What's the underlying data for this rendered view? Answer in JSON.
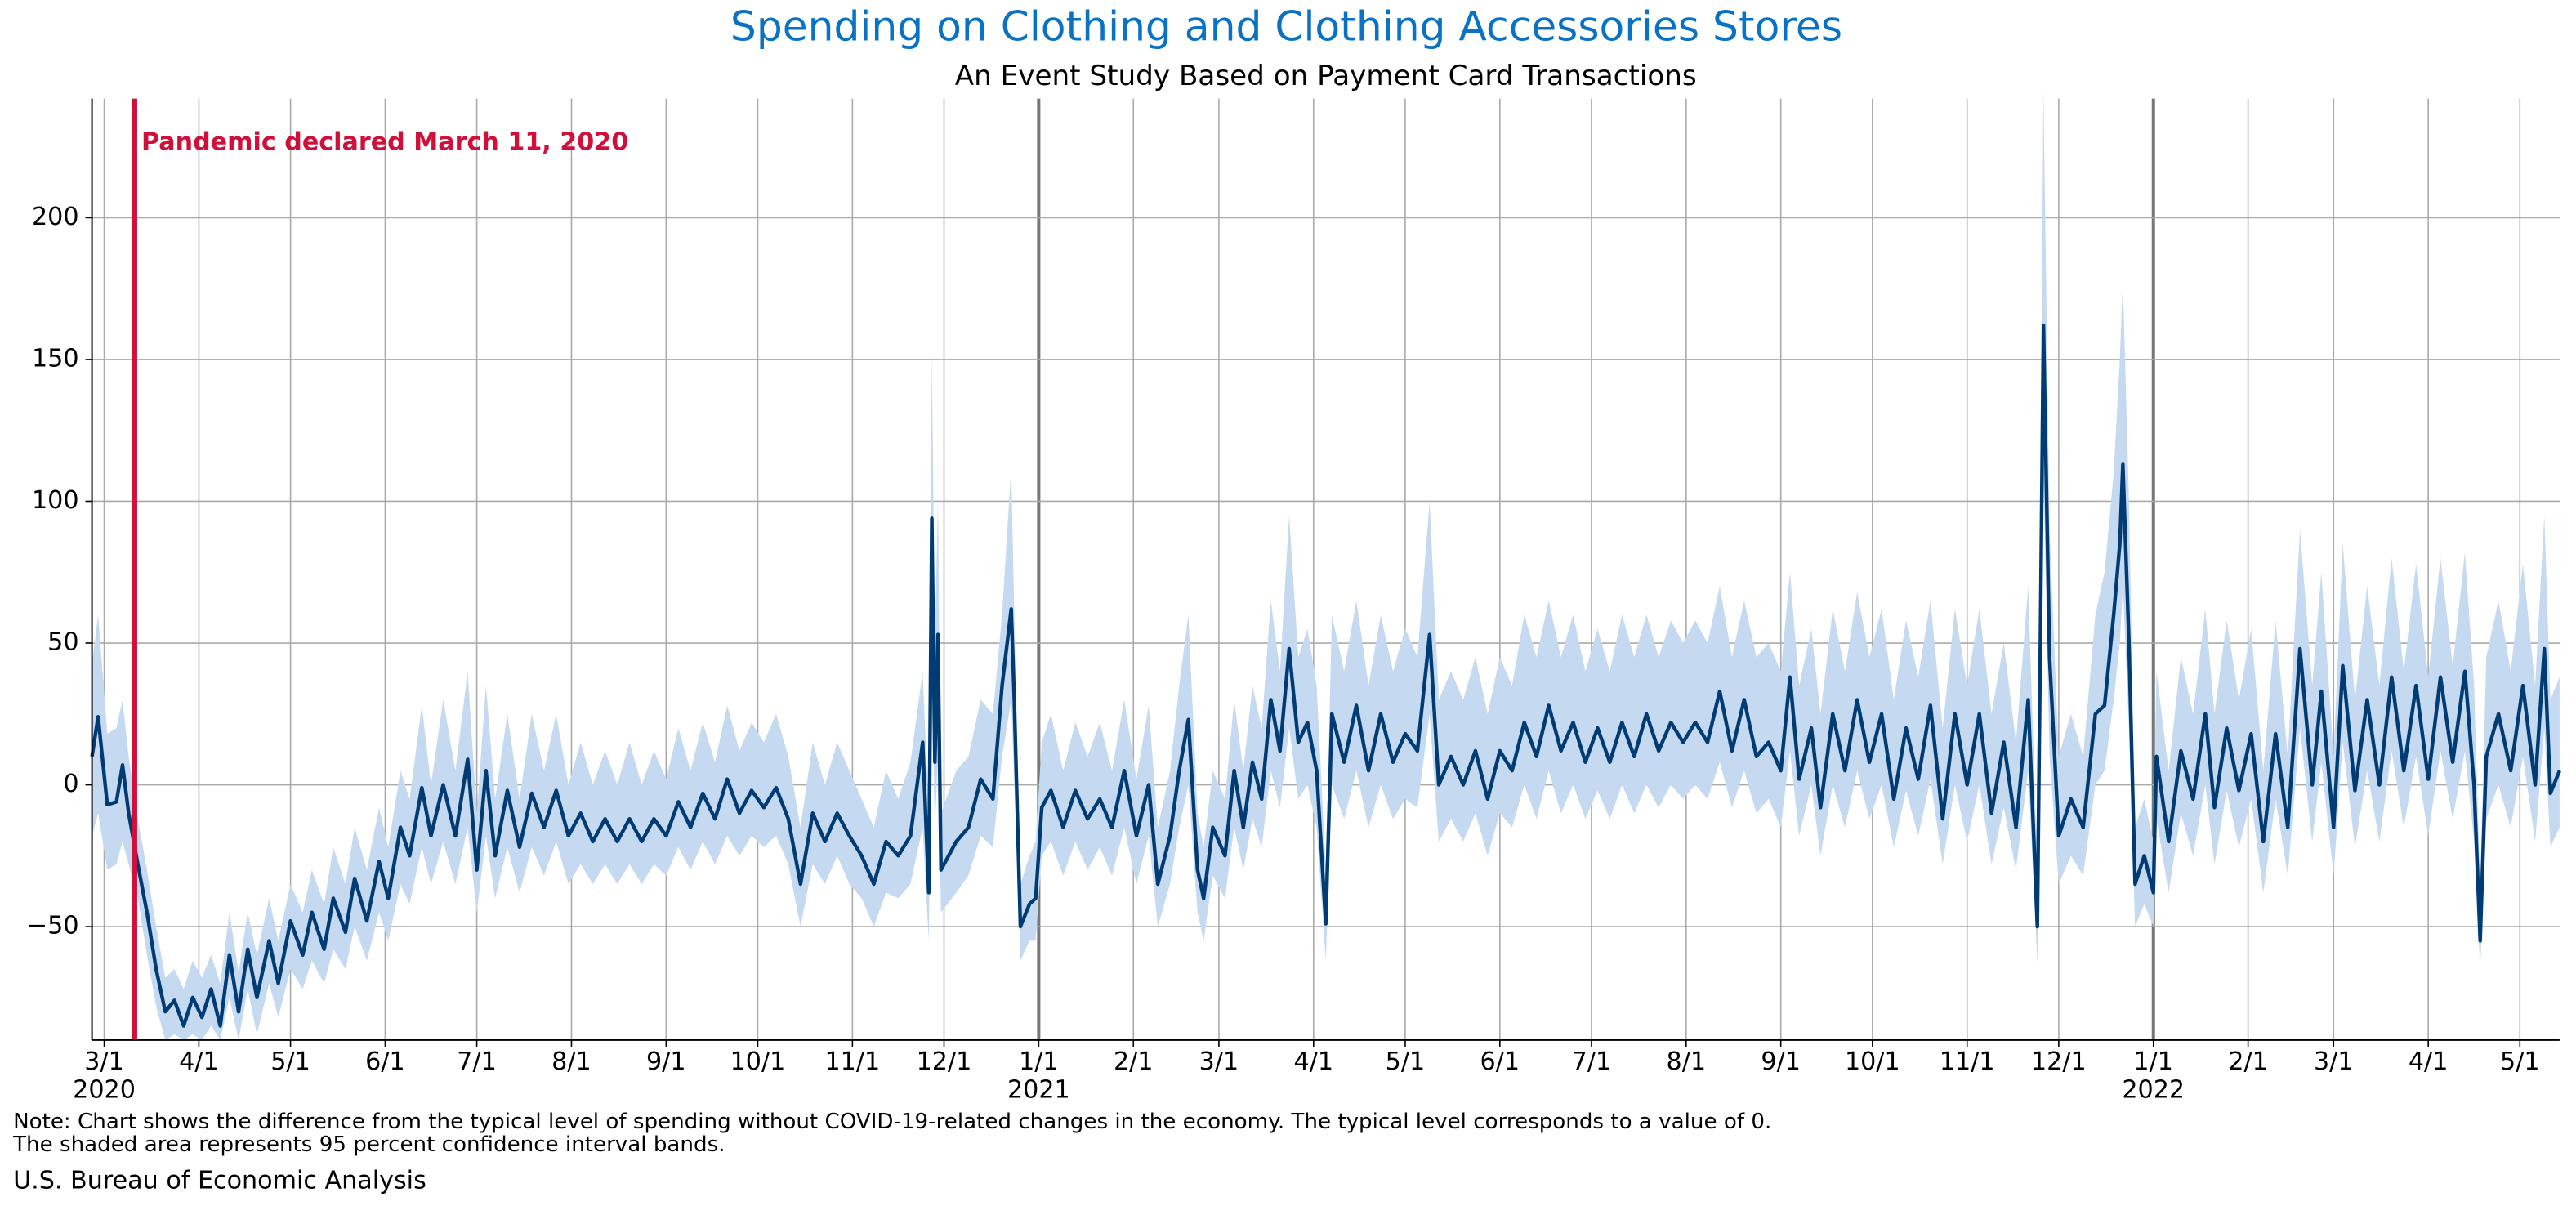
{
  "chart_data": {
    "type": "line",
    "title": "Spending on Clothing and Clothing Accessories Stores",
    "subtitle": "An Event Study Based on Payment Card Transactions",
    "annotation": "Pandemic declared March 11, 2020",
    "event_date": "2020-03-11",
    "note": [
      "Note: Chart shows the difference from the typical level of spending without COVID-19-related changes in the economy. The typical level corresponds to a value of 0.",
      "The shaded area represents 95 percent confidence interval bands."
    ],
    "source": "U.S. Bureau of Economic Analysis",
    "line_color": "#003b73",
    "band_color": "#c5d9f0",
    "event_color": "#d0103a",
    "grid": true,
    "xlim": [
      "2020-02-26",
      "2022-05-14"
    ],
    "ylim": [
      -90,
      242
    ],
    "yticks": [
      {
        "value": -50,
        "label": "−50"
      },
      0,
      50,
      100,
      150,
      200
    ],
    "xticks": [
      {
        "value": "2020-03-01",
        "label": "3/1\n2020"
      },
      {
        "value": "2020-04-01",
        "label": "4/1"
      },
      {
        "value": "2020-05-01",
        "label": "5/1"
      },
      {
        "value": "2020-06-01",
        "label": "6/1"
      },
      {
        "value": "2020-07-01",
        "label": "7/1"
      },
      {
        "value": "2020-08-01",
        "label": "8/1"
      },
      {
        "value": "2020-09-01",
        "label": "9/1"
      },
      {
        "value": "2020-10-01",
        "label": "10/1"
      },
      {
        "value": "2020-11-01",
        "label": "11/1"
      },
      {
        "value": "2020-12-01",
        "label": "12/1"
      },
      {
        "value": "2021-01-01",
        "label": "1/1\n2021"
      },
      {
        "value": "2021-02-01",
        "label": "2/1"
      },
      {
        "value": "2021-03-01",
        "label": "3/1"
      },
      {
        "value": "2021-04-01",
        "label": "4/1"
      },
      {
        "value": "2021-05-01",
        "label": "5/1"
      },
      {
        "value": "2021-06-01",
        "label": "6/1"
      },
      {
        "value": "2021-07-01",
        "label": "7/1"
      },
      {
        "value": "2021-08-01",
        "label": "8/1"
      },
      {
        "value": "2021-09-01",
        "label": "9/1"
      },
      {
        "value": "2021-10-01",
        "label": "10/1"
      },
      {
        "value": "2021-11-01",
        "label": "11/1"
      },
      {
        "value": "2021-12-01",
        "label": "12/1"
      },
      {
        "value": "2022-01-01",
        "label": "1/1\n2022"
      },
      {
        "value": "2022-02-01",
        "label": "2/1"
      },
      {
        "value": "2022-03-01",
        "label": "3/1"
      },
      {
        "value": "2022-04-01",
        "label": "4/1"
      },
      {
        "value": "2022-05-01",
        "label": "5/1"
      }
    ],
    "x": [
      "2020-02-26",
      "2020-02-28",
      "2020-03-02",
      "2020-03-05",
      "2020-03-07",
      "2020-03-09",
      "2020-03-12",
      "2020-03-15",
      "2020-03-18",
      "2020-03-21",
      "2020-03-24",
      "2020-03-27",
      "2020-03-30",
      "2020-04-02",
      "2020-04-05",
      "2020-04-08",
      "2020-04-11",
      "2020-04-14",
      "2020-04-17",
      "2020-04-20",
      "2020-04-24",
      "2020-04-27",
      "2020-05-01",
      "2020-05-05",
      "2020-05-08",
      "2020-05-12",
      "2020-05-15",
      "2020-05-19",
      "2020-05-22",
      "2020-05-26",
      "2020-05-30",
      "2020-06-02",
      "2020-06-06",
      "2020-06-09",
      "2020-06-13",
      "2020-06-16",
      "2020-06-20",
      "2020-06-24",
      "2020-06-28",
      "2020-07-01",
      "2020-07-04",
      "2020-07-07",
      "2020-07-11",
      "2020-07-15",
      "2020-07-19",
      "2020-07-23",
      "2020-07-27",
      "2020-07-31",
      "2020-08-04",
      "2020-08-08",
      "2020-08-12",
      "2020-08-16",
      "2020-08-20",
      "2020-08-24",
      "2020-08-28",
      "2020-09-01",
      "2020-09-05",
      "2020-09-09",
      "2020-09-13",
      "2020-09-17",
      "2020-09-21",
      "2020-09-25",
      "2020-09-29",
      "2020-10-03",
      "2020-10-07",
      "2020-10-11",
      "2020-10-15",
      "2020-10-19",
      "2020-10-23",
      "2020-10-27",
      "2020-10-31",
      "2020-11-04",
      "2020-11-08",
      "2020-11-12",
      "2020-11-16",
      "2020-11-20",
      "2020-11-24",
      "2020-11-26",
      "2020-11-27",
      "2020-11-28",
      "2020-11-29",
      "2020-11-30",
      "2020-12-05",
      "2020-12-09",
      "2020-12-13",
      "2020-12-17",
      "2020-12-20",
      "2020-12-23",
      "2020-12-24",
      "2020-12-26",
      "2020-12-29",
      "2020-12-31",
      "2021-01-02",
      "2021-01-05",
      "2021-01-09",
      "2021-01-13",
      "2021-01-17",
      "2021-01-21",
      "2021-01-25",
      "2021-01-29",
      "2021-02-02",
      "2021-02-06",
      "2021-02-09",
      "2021-02-13",
      "2021-02-16",
      "2021-02-19",
      "2021-02-22",
      "2021-02-24",
      "2021-02-27",
      "2021-03-03",
      "2021-03-06",
      "2021-03-09",
      "2021-03-12",
      "2021-03-15",
      "2021-03-18",
      "2021-03-21",
      "2021-03-24",
      "2021-03-27",
      "2021-03-30",
      "2021-04-02",
      "2021-04-05",
      "2021-04-07",
      "2021-04-11",
      "2021-04-15",
      "2021-04-19",
      "2021-04-23",
      "2021-04-27",
      "2021-05-01",
      "2021-05-05",
      "2021-05-09",
      "2021-05-12",
      "2021-05-16",
      "2021-05-20",
      "2021-05-24",
      "2021-05-28",
      "2021-06-01",
      "2021-06-05",
      "2021-06-09",
      "2021-06-13",
      "2021-06-17",
      "2021-06-21",
      "2021-06-25",
      "2021-06-29",
      "2021-07-03",
      "2021-07-07",
      "2021-07-11",
      "2021-07-15",
      "2021-07-19",
      "2021-07-23",
      "2021-07-27",
      "2021-07-31",
      "2021-08-04",
      "2021-08-08",
      "2021-08-12",
      "2021-08-16",
      "2021-08-20",
      "2021-08-24",
      "2021-08-28",
      "2021-09-01",
      "2021-09-04",
      "2021-09-07",
      "2021-09-11",
      "2021-09-14",
      "2021-09-18",
      "2021-09-22",
      "2021-09-26",
      "2021-09-30",
      "2021-10-04",
      "2021-10-08",
      "2021-10-12",
      "2021-10-16",
      "2021-10-20",
      "2021-10-24",
      "2021-10-28",
      "2021-11-01",
      "2021-11-05",
      "2021-11-09",
      "2021-11-13",
      "2021-11-17",
      "2021-11-21",
      "2021-11-24",
      "2021-11-25",
      "2021-11-26",
      "2021-11-28",
      "2021-12-01",
      "2021-12-05",
      "2021-12-09",
      "2021-12-13",
      "2021-12-16",
      "2021-12-19",
      "2021-12-21",
      "2021-12-22",
      "2021-12-24",
      "2021-12-26",
      "2021-12-29",
      "2022-01-01",
      "2022-01-02",
      "2022-01-06",
      "2022-01-10",
      "2022-01-14",
      "2022-01-18",
      "2022-01-21",
      "2022-01-25",
      "2022-01-29",
      "2022-02-02",
      "2022-02-06",
      "2022-02-10",
      "2022-02-14",
      "2022-02-18",
      "2022-02-22",
      "2022-02-25",
      "2022-03-01",
      "2022-03-04",
      "2022-03-08",
      "2022-03-12",
      "2022-03-16",
      "2022-03-20",
      "2022-03-24",
      "2022-03-28",
      "2022-04-01",
      "2022-04-05",
      "2022-04-09",
      "2022-04-13",
      "2022-04-16",
      "2022-04-18",
      "2022-04-20",
      "2022-04-24",
      "2022-04-28",
      "2022-05-02",
      "2022-05-06",
      "2022-05-09",
      "2022-05-11",
      "2022-05-14"
    ],
    "values": [
      10,
      24,
      -7,
      -6,
      7,
      -10,
      -28,
      -45,
      -65,
      -80,
      -76,
      -85,
      -75,
      -82,
      -72,
      -85,
      -60,
      -80,
      -58,
      -75,
      -55,
      -70,
      -48,
      -60,
      -45,
      -58,
      -40,
      -52,
      -33,
      -48,
      -27,
      -40,
      -15,
      -25,
      -1,
      -18,
      0,
      -18,
      9,
      -30,
      5,
      -25,
      -2,
      -22,
      -3,
      -15,
      -2,
      -18,
      -10,
      -20,
      -12,
      -20,
      -12,
      -20,
      -12,
      -18,
      -6,
      -15,
      -3,
      -12,
      2,
      -10,
      -2,
      -8,
      -1,
      -12,
      -35,
      -10,
      -20,
      -10,
      -18,
      -25,
      -35,
      -20,
      -25,
      -18,
      15,
      -38,
      94,
      8,
      53,
      -30,
      -20,
      -15,
      2,
      -5,
      35,
      62,
      30,
      -50,
      -42,
      -40,
      -8,
      -2,
      -15,
      -2,
      -12,
      -5,
      -15,
      5,
      -18,
      0,
      -35,
      -18,
      5,
      23,
      -30,
      -40,
      -15,
      -25,
      5,
      -15,
      8,
      -5,
      30,
      12,
      48,
      15,
      22,
      5,
      -49,
      25,
      8,
      28,
      5,
      25,
      8,
      18,
      12,
      53,
      0,
      10,
      0,
      12,
      -5,
      12,
      5,
      22,
      10,
      28,
      12,
      22,
      8,
      20,
      8,
      22,
      10,
      25,
      12,
      22,
      15,
      22,
      15,
      33,
      12,
      30,
      10,
      15,
      5,
      38,
      2,
      20,
      -8,
      25,
      5,
      30,
      8,
      25,
      -5,
      20,
      2,
      28,
      -12,
      25,
      0,
      25,
      -10,
      15,
      -15,
      30,
      -50,
      52,
      162,
      45,
      -18,
      -5,
      -15,
      25,
      28,
      60,
      85,
      113,
      50,
      -35,
      -25,
      -38,
      10,
      -20,
      12,
      -5,
      25,
      -8,
      20,
      -2,
      18,
      -20,
      18,
      -15,
      48,
      0,
      33,
      -15,
      42,
      -2,
      30,
      0,
      38,
      5,
      35,
      2,
      38,
      8,
      40,
      0,
      -55,
      10,
      25,
      5,
      35,
      0,
      48,
      -3,
      5
    ],
    "lower": [
      -18,
      -10,
      -30,
      -28,
      -20,
      -28,
      -40,
      -60,
      -78,
      -90,
      -88,
      -90,
      -88,
      -90,
      -85,
      -90,
      -75,
      -90,
      -72,
      -88,
      -70,
      -82,
      -65,
      -72,
      -62,
      -70,
      -58,
      -65,
      -50,
      -62,
      -45,
      -55,
      -35,
      -42,
      -22,
      -35,
      -20,
      -35,
      -15,
      -45,
      -18,
      -40,
      -22,
      -38,
      -22,
      -32,
      -20,
      -35,
      -28,
      -35,
      -28,
      -35,
      -28,
      -35,
      -28,
      -32,
      -22,
      -30,
      -20,
      -28,
      -18,
      -25,
      -18,
      -22,
      -18,
      -28,
      -50,
      -28,
      -35,
      -25,
      -35,
      -40,
      -50,
      -38,
      -40,
      -35,
      -15,
      -55,
      40,
      -15,
      10,
      -45,
      -38,
      -32,
      -18,
      -22,
      10,
      30,
      0,
      -62,
      -55,
      -55,
      -25,
      -20,
      -32,
      -20,
      -30,
      -22,
      -32,
      -15,
      -35,
      -18,
      -50,
      -35,
      -15,
      0,
      -45,
      -55,
      -32,
      -40,
      -15,
      -30,
      -12,
      -22,
      5,
      -8,
      20,
      -5,
      0,
      -15,
      -62,
      0,
      -12,
      5,
      -15,
      0,
      -12,
      -5,
      -8,
      25,
      -20,
      -12,
      -20,
      -10,
      -25,
      -10,
      -15,
      0,
      -12,
      5,
      -10,
      0,
      -12,
      -2,
      -12,
      0,
      -10,
      0,
      -8,
      0,
      -5,
      0,
      -5,
      8,
      -8,
      5,
      -10,
      -5,
      -15,
      12,
      -18,
      0,
      -25,
      0,
      -15,
      5,
      -12,
      0,
      -22,
      -2,
      -18,
      2,
      -28,
      0,
      -20,
      0,
      -28,
      -8,
      -30,
      5,
      -63,
      20,
      110,
      10,
      -35,
      -25,
      -32,
      0,
      5,
      30,
      50,
      70,
      20,
      -50,
      -42,
      -50,
      -12,
      -38,
      -10,
      -25,
      0,
      -28,
      -2,
      -22,
      -5,
      -38,
      -5,
      -32,
      20,
      -20,
      8,
      -32,
      15,
      -22,
      5,
      -20,
      12,
      -15,
      10,
      -18,
      12,
      -12,
      12,
      -20,
      -65,
      -12,
      0,
      -15,
      10,
      -20,
      20,
      -22,
      -15
    ],
    "upper": [
      42,
      60,
      18,
      20,
      30,
      10,
      -12,
      -30,
      -50,
      -68,
      -65,
      -72,
      -62,
      -68,
      -60,
      -70,
      -45,
      -66,
      -45,
      -60,
      -40,
      -55,
      -35,
      -45,
      -30,
      -42,
      -22,
      -35,
      -15,
      -30,
      -8,
      -22,
      5,
      -5,
      28,
      0,
      30,
      5,
      40,
      -10,
      35,
      -5,
      25,
      -5,
      25,
      5,
      25,
      0,
      15,
      0,
      12,
      0,
      15,
      0,
      12,
      2,
      20,
      5,
      22,
      8,
      28,
      12,
      22,
      15,
      25,
      10,
      -15,
      15,
      0,
      15,
      5,
      -5,
      -15,
      5,
      -5,
      8,
      40,
      -10,
      153,
      50,
      100,
      -10,
      5,
      10,
      30,
      25,
      60,
      112,
      60,
      -35,
      -25,
      -20,
      15,
      25,
      5,
      22,
      10,
      22,
      5,
      30,
      2,
      28,
      -15,
      5,
      35,
      60,
      -10,
      -22,
      5,
      -5,
      30,
      5,
      35,
      20,
      65,
      40,
      95,
      45,
      55,
      35,
      -30,
      60,
      40,
      65,
      35,
      60,
      40,
      55,
      45,
      100,
      30,
      40,
      30,
      45,
      25,
      45,
      35,
      60,
      45,
      65,
      45,
      60,
      40,
      55,
      40,
      60,
      45,
      60,
      45,
      58,
      50,
      58,
      50,
      70,
      45,
      65,
      45,
      50,
      40,
      75,
      35,
      55,
      25,
      62,
      40,
      68,
      45,
      62,
      30,
      58,
      38,
      65,
      20,
      62,
      35,
      62,
      25,
      50,
      15,
      70,
      -30,
      110,
      245,
      90,
      10,
      25,
      10,
      60,
      75,
      110,
      150,
      178,
      100,
      -15,
      -5,
      -20,
      40,
      5,
      45,
      25,
      62,
      25,
      58,
      30,
      55,
      5,
      58,
      10,
      90,
      35,
      75,
      10,
      85,
      30,
      70,
      35,
      80,
      40,
      78,
      38,
      80,
      42,
      82,
      35,
      -35,
      45,
      65,
      40,
      78,
      35,
      95,
      30,
      38
    ]
  }
}
